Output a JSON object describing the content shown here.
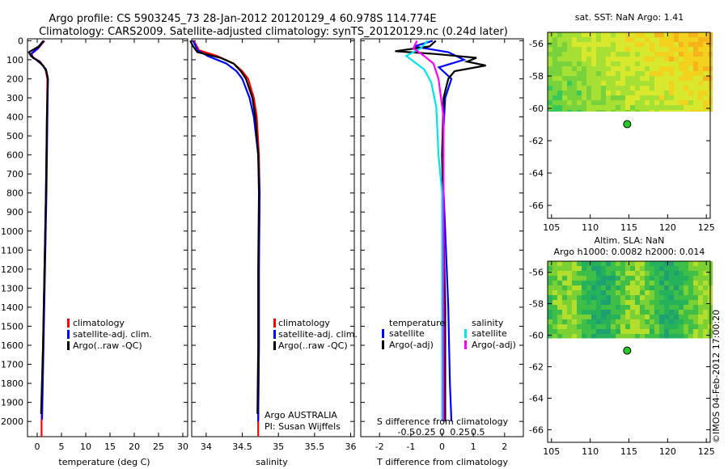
{
  "header": {
    "line1": "Argo profile: CS 5903245_73 28-Jan-2012 20120129_4 60.978S 114.774E",
    "line2": "Climatology: CARS2009. Satellite-adjusted climatology: synTS_20120129.nc (0.24d later)"
  },
  "colors": {
    "clim": "#ff0000",
    "sat": "#0000ff",
    "argo": "#000000",
    "sal_sat": "#00e5ee",
    "sal_argo": "#ff00ff",
    "land": "#22cc22"
  },
  "chart_data": [
    {
      "type": "line",
      "id": "temperature",
      "xlabel": "temperature (deg C)",
      "xlim": [
        -2,
        31
      ],
      "ylim": [
        2080,
        -10
      ],
      "xticks": [
        0,
        5,
        10,
        15,
        20,
        25,
        30
      ],
      "xtick_labels": [
        "0",
        "5",
        "10",
        "15",
        "20",
        "25",
        "30"
      ],
      "yticks": [
        0,
        100,
        200,
        300,
        400,
        500,
        600,
        700,
        800,
        900,
        1000,
        1100,
        1200,
        1300,
        1400,
        1500,
        1600,
        1700,
        1800,
        1900,
        2000
      ],
      "ytick_labels": [
        "0",
        "100",
        "200",
        "300",
        "400",
        "500",
        "600",
        "700",
        "800",
        "900",
        "1000",
        "1100",
        "1200",
        "1300",
        "1400",
        "1500",
        "1600",
        "1700",
        "1800",
        "1900",
        "2000"
      ],
      "legend": [
        "climatology",
        "satellite-adj. clim.",
        "Argo(..raw -QC)"
      ],
      "series": [
        {
          "name": "climatology",
          "color": "#ff0000",
          "depth": [
            0,
            40,
            70,
            90,
            110,
            150,
            200,
            400,
            800,
            1200,
            1600,
            2000,
            2080
          ],
          "values": [
            1.5,
            0.2,
            -1.2,
            -0.8,
            0.6,
            1.7,
            2.1,
            2.0,
            1.8,
            1.5,
            1.2,
            0.9,
            0.9
          ]
        },
        {
          "name": "satellite-adj. clim.",
          "color": "#0000ff",
          "depth": [
            0,
            40,
            70,
            90,
            110,
            150,
            200,
            400,
            800,
            1200,
            1600,
            1990
          ],
          "values": [
            1.4,
            0.1,
            -1.3,
            -0.9,
            0.5,
            1.8,
            2.2,
            2.1,
            1.9,
            1.6,
            1.3,
            1.0
          ]
        },
        {
          "name": "Argo(..raw -QC)",
          "color": "#000000",
          "depth": [
            0,
            30,
            60,
            80,
            100,
            130,
            160,
            200,
            400,
            800,
            1200,
            1600,
            1960
          ],
          "values": [
            1.3,
            0.3,
            -1.7,
            -1.3,
            -0.2,
            1.2,
            1.9,
            2.2,
            2.0,
            1.8,
            1.5,
            1.2,
            0.8
          ]
        }
      ]
    },
    {
      "type": "line",
      "id": "salinity",
      "xlabel": "salinity",
      "xlim": [
        33.8,
        36.05
      ],
      "ylim": [
        2080,
        -10
      ],
      "xticks": [
        34,
        34.5,
        35,
        35.5,
        36
      ],
      "xtick_labels": [
        "34",
        "34.5",
        "35",
        "35.5",
        "36"
      ],
      "legend": [
        "climatology",
        "satellite-adj. clim.",
        "Argo(..raw -QC)"
      ],
      "annotation": [
        "Argo AUSTRALIA",
        "PI: Susan Wijffels"
      ],
      "series": [
        {
          "name": "climatology",
          "color": "#ff0000",
          "depth": [
            0,
            50,
            80,
            120,
            160,
            200,
            300,
            400,
            600,
            800,
            1200,
            1600,
            2000,
            2080
          ],
          "values": [
            33.83,
            33.9,
            34.15,
            34.38,
            34.5,
            34.58,
            34.66,
            34.7,
            34.73,
            34.74,
            34.73,
            34.73,
            34.72,
            34.72
          ]
        },
        {
          "name": "satellite-adj. clim.",
          "color": "#0000ff",
          "depth": [
            0,
            50,
            80,
            120,
            160,
            200,
            300,
            400,
            600,
            800,
            1200,
            1600,
            2000
          ],
          "values": [
            33.82,
            33.88,
            34.02,
            34.28,
            34.42,
            34.5,
            34.6,
            34.66,
            34.72,
            34.74,
            34.73,
            34.73,
            34.72
          ]
        },
        {
          "name": "Argo(..raw -QC)",
          "color": "#000000",
          "depth": [
            0,
            30,
            60,
            90,
            120,
            160,
            200,
            300,
            400,
            600,
            800,
            1200,
            1600,
            1960
          ],
          "values": [
            33.78,
            33.82,
            33.88,
            34.2,
            34.38,
            34.48,
            34.55,
            34.64,
            34.68,
            34.72,
            34.73,
            34.72,
            34.72,
            34.71
          ]
        }
      ]
    },
    {
      "type": "line",
      "id": "difference",
      "xlabel": "T difference from climatology",
      "top_axis_label": "S difference from climatology",
      "xlim": [
        -2.6,
        2.6
      ],
      "ylim": [
        2080,
        -10
      ],
      "xticks": [
        -2,
        -1,
        0,
        1,
        2
      ],
      "xtick_labels": [
        "-2",
        "-1",
        "0",
        "1",
        "2"
      ],
      "sticks": [
        -0.5,
        -0.25,
        0,
        0.25,
        0.5
      ],
      "stick_labels": [
        "-0.5",
        "-0.25",
        "0",
        "0.25",
        "0.5"
      ],
      "legend_headers": [
        "temperature",
        "salinity"
      ],
      "legend": [
        "satellite",
        "Argo(-adj)",
        "satellite",
        "Argo(-adj)"
      ],
      "series": [
        {
          "name": "temperature satellite",
          "color": "#0000ff",
          "depth": [
            0,
            30,
            60,
            100,
            140,
            200,
            300,
            600,
            1000,
            1400,
            1800,
            2000
          ],
          "values": [
            -0.3,
            -0.9,
            0.2,
            0.7,
            -0.1,
            0.3,
            0.1,
            0.0,
            0.1,
            0.2,
            0.25,
            0.3
          ]
        },
        {
          "name": "temperature Argo(-adj)",
          "color": "#000000",
          "depth": [
            0,
            30,
            55,
            70,
            90,
            110,
            130,
            160,
            200,
            300,
            600,
            1000,
            1400,
            1800,
            2000
          ],
          "values": [
            -0.2,
            -0.4,
            -1.5,
            -0.2,
            1.1,
            0.8,
            1.4,
            0.4,
            0.2,
            0.05,
            0.0,
            0.05,
            0.1,
            0.1,
            0.1
          ]
        },
        {
          "name": "salinity satellite",
          "color": "#00e5ee",
          "depth": [
            0,
            40,
            80,
            150,
            220,
            350,
            600,
            800,
            1200,
            1600,
            2000
          ],
          "values": [
            -0.2,
            -0.3,
            -0.5,
            -0.25,
            -0.15,
            -0.08,
            -0.05,
            0.0,
            0.0,
            0.0,
            0.0
          ]
        },
        {
          "name": "salinity Argo(-adj)",
          "color": "#ff00ff",
          "depth": [
            0,
            40,
            80,
            120,
            200,
            400,
            800,
            1200,
            1600,
            2000
          ],
          "values": [
            -0.35,
            -0.4,
            -0.25,
            -0.12,
            -0.05,
            0.02,
            0.02,
            0.02,
            0.02,
            0.02
          ]
        }
      ]
    },
    {
      "type": "heatmap",
      "id": "sst",
      "title": "sat. SST: NaN Argo: 1.41",
      "xlim": [
        104.5,
        125.5
      ],
      "ylim": [
        -66.8,
        -55.3
      ],
      "xticks": [
        105,
        110,
        115,
        120,
        125
      ],
      "xtick_labels": [
        "105",
        "110",
        "115",
        "120",
        "125"
      ],
      "yticks": [
        -56,
        -58,
        -60,
        -62,
        -64,
        -66
      ],
      "ytick_labels": [
        "-56",
        "-58",
        "-60",
        "-62",
        "-64",
        "-66"
      ],
      "data_lat_min": -60.2,
      "argo_position": {
        "lon": 114.774,
        "lat": -60.978
      }
    },
    {
      "type": "heatmap",
      "id": "sla",
      "title": "Altim. SLA: NaN",
      "subtitle": "Argo h1000: 0.0082 h2000: 0.014",
      "xlim": [
        104.5,
        125.5
      ],
      "ylim": [
        -66.8,
        -55.3
      ],
      "xticks": [
        105,
        110,
        115,
        120,
        125
      ],
      "xtick_labels": [
        "105",
        "110",
        "115",
        "120",
        "125"
      ],
      "yticks": [
        -56,
        -58,
        -60,
        -62,
        -64,
        -66
      ],
      "ytick_labels": [
        "-56",
        "-58",
        "-60",
        "-62",
        "-64",
        "-66"
      ],
      "data_lat_min": -60.2,
      "argo_position": {
        "lon": 114.774,
        "lat": -60.978
      }
    }
  ],
  "footer": {
    "credit": "©IMOS 04-Feb-2012 17:00:20"
  }
}
